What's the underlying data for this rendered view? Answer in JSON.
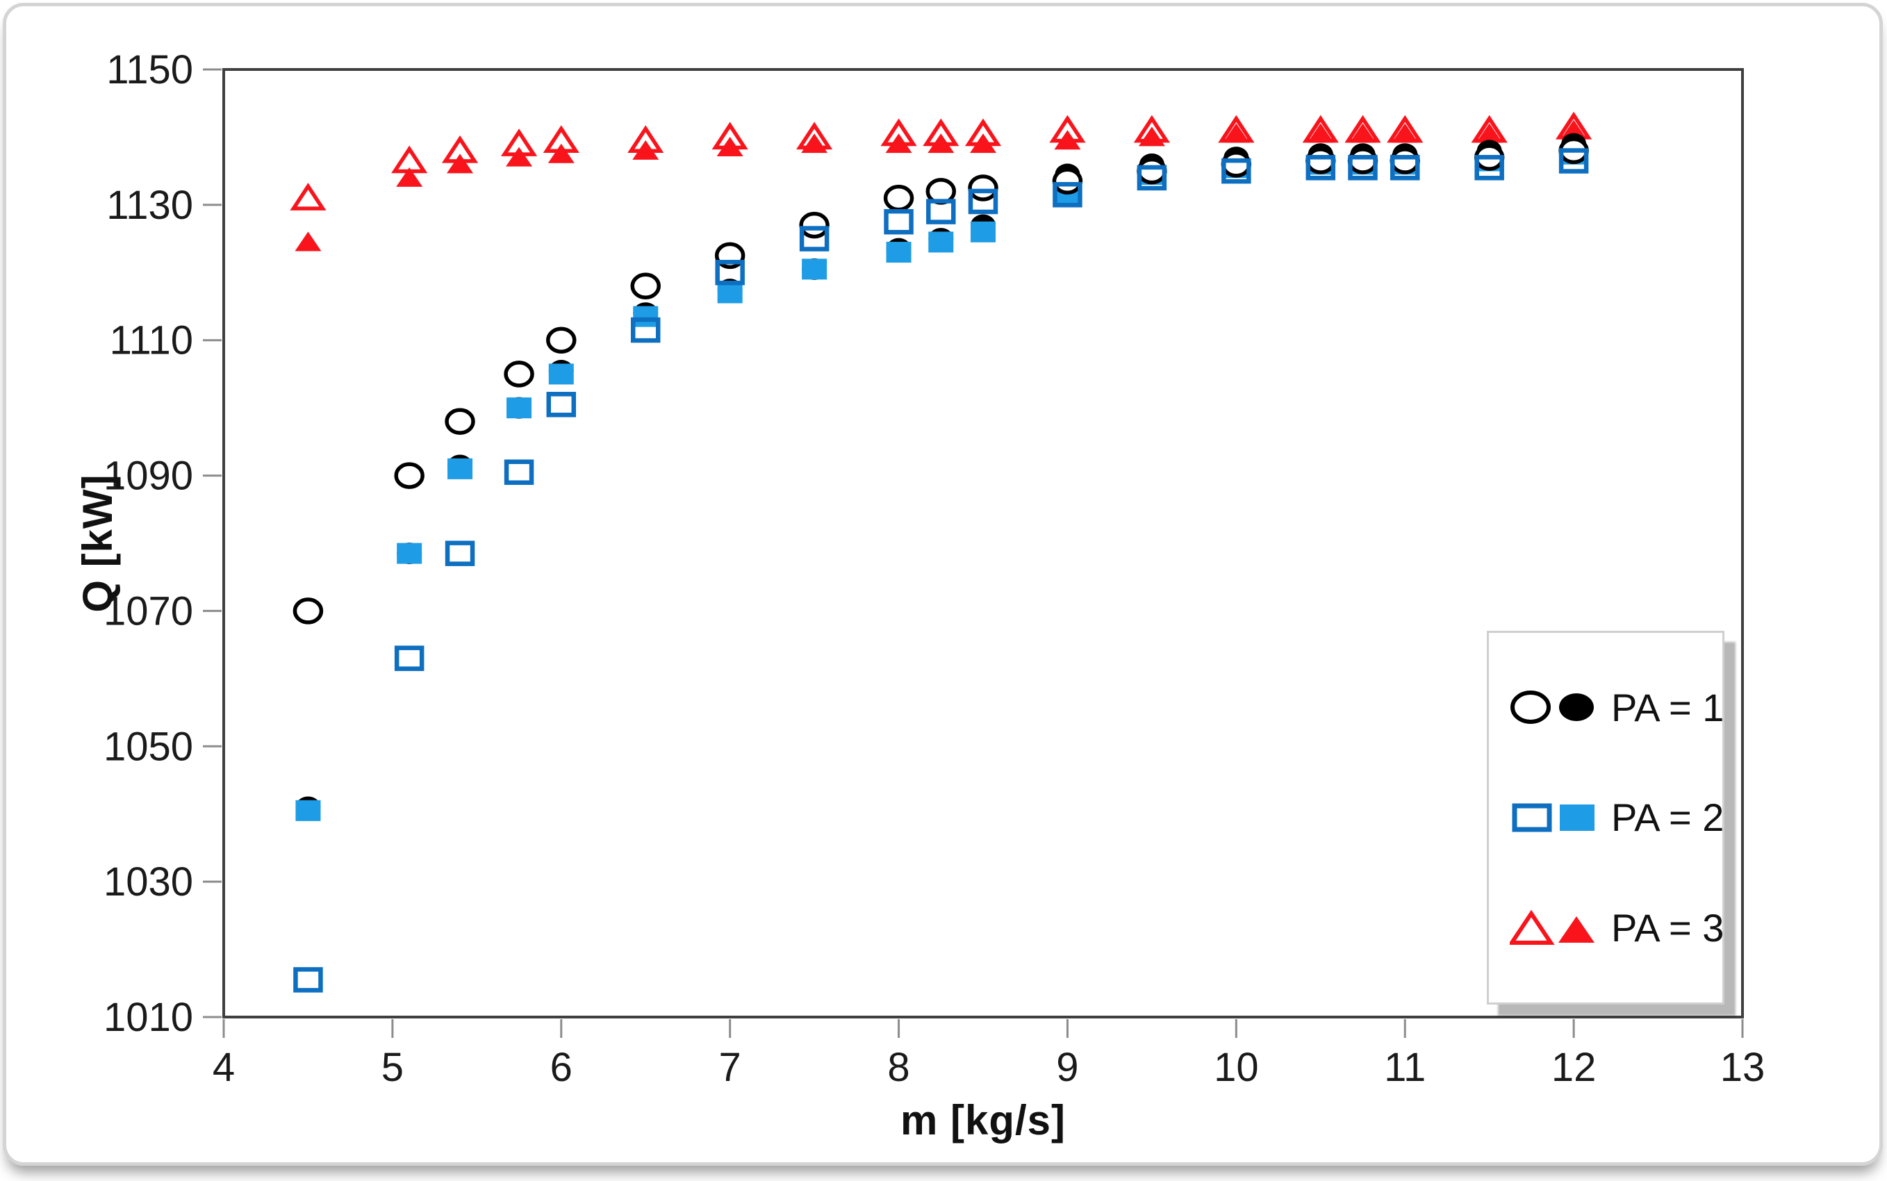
{
  "colors": {
    "black": "#000000",
    "white": "#ffffff",
    "blue_fill": "#1E9CE5",
    "blue_stroke": "#0E6FC1",
    "red": "#F9141C",
    "frame": "#3F3F3F",
    "tick": "#8C8C8C",
    "text": "#1A1A1A"
  },
  "chart_data": {
    "type": "scatter",
    "title": "",
    "xlabel": "m [kg/s]",
    "ylabel": "Q [kW]",
    "xlim": [
      4,
      13
    ],
    "ylim": [
      1010,
      1150
    ],
    "x_ticks": [
      4,
      5,
      6,
      7,
      8,
      9,
      10,
      11,
      12,
      13
    ],
    "y_ticks": [
      1010,
      1030,
      1050,
      1070,
      1090,
      1110,
      1130,
      1150
    ],
    "grid": false,
    "legend_position": "lower right",
    "x": [
      4.5,
      5.1,
      5.4,
      5.75,
      6,
      6.5,
      7,
      7.5,
      8,
      8.25,
      8.5,
      9,
      9.5,
      10,
      10.5,
      10.75,
      11,
      11.5,
      12
    ],
    "series": [
      {
        "name": "PA = 1 open circle",
        "marker": "circle",
        "fill": "open",
        "color": "#000000",
        "values": [
          1070,
          1090,
          1098,
          1105,
          1110,
          1118,
          1122.5,
          1127,
          1131,
          1132,
          1132.5,
          1133.5,
          1135,
          1136,
          1136.5,
          1136.5,
          1136.5,
          1137,
          1138
        ]
      },
      {
        "name": "PA = 1 filled circle",
        "marker": "circle",
        "fill": "filled",
        "color": "#000000",
        "values": [
          1041,
          1078.5,
          1091.5,
          1100,
          1105.5,
          1114,
          1117.5,
          1120.5,
          1123.5,
          1125,
          1127,
          1134.5,
          1136,
          1137,
          1137.5,
          1137.5,
          1137.5,
          1138,
          1139
        ]
      },
      {
        "name": "PA = 2 open square",
        "marker": "square",
        "fill": "open",
        "color": "#0E6FC1",
        "values": [
          1015.5,
          1063,
          1078.5,
          1090.5,
          1100.5,
          1111.5,
          1120,
          1125,
          1127.5,
          1129,
          1130.5,
          1131.5,
          1134,
          1135,
          1135.5,
          1135.5,
          1135.5,
          1135.5,
          1136.5
        ]
      },
      {
        "name": "PA = 2 filled square",
        "marker": "square",
        "fill": "filled",
        "color": "#1E9CE5",
        "values": [
          1040.5,
          1078.5,
          1091,
          1100,
          1105,
          1113.5,
          1117,
          1120.5,
          1123,
          1124.5,
          1126,
          1131.5,
          1134.5,
          1135.5,
          1136,
          1136,
          1136,
          1136.5,
          1137.5
        ]
      },
      {
        "name": "PA = 3 open triangle",
        "marker": "triangle",
        "fill": "open",
        "color": "#F9141C",
        "values": [
          1131,
          1136.5,
          1138,
          1139,
          1139.5,
          1139.5,
          1140,
          1140,
          1140.5,
          1140.5,
          1140.5,
          1141,
          1141,
          1141,
          1141,
          1141,
          1141,
          1141,
          1141.5
        ]
      },
      {
        "name": "PA = 3 filled triangle",
        "marker": "triangle",
        "fill": "filled",
        "color": "#F9141C",
        "values": [
          1124.5,
          1134,
          1136,
          1137,
          1137.5,
          1138,
          1138.5,
          1139,
          1139,
          1139,
          1139,
          1139.5,
          1140,
          1140.5,
          1140.5,
          1140.5,
          1140.5,
          1140.5,
          1141
        ]
      }
    ],
    "legend": [
      {
        "label": "PA = 1"
      },
      {
        "label": "PA = 2"
      },
      {
        "label": "PA = 3"
      }
    ]
  }
}
